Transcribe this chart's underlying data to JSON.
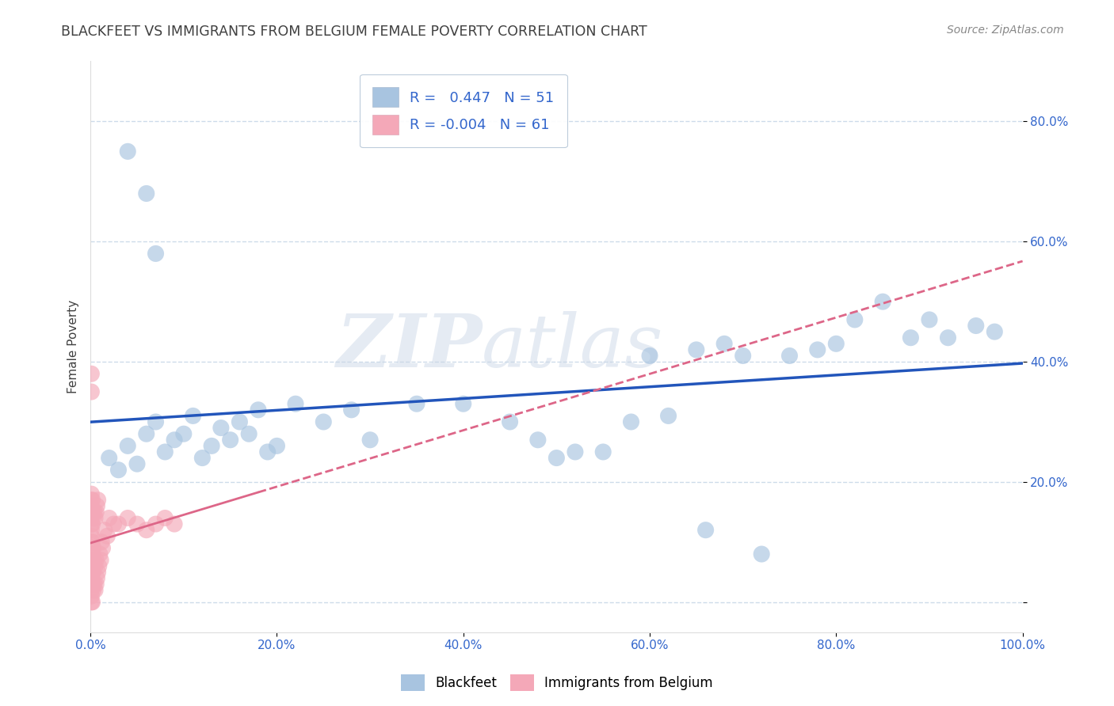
{
  "title": "BLACKFEET VS IMMIGRANTS FROM BELGIUM FEMALE POVERTY CORRELATION CHART",
  "source": "Source: ZipAtlas.com",
  "ylabel": "Female Poverty",
  "xlabel": "",
  "xlim": [
    0.0,
    1.0
  ],
  "ylim": [
    -0.05,
    0.9
  ],
  "xticks": [
    0.0,
    0.2,
    0.4,
    0.6,
    0.8,
    1.0
  ],
  "xtick_labels": [
    "0.0%",
    "20.0%",
    "40.0%",
    "60.0%",
    "80.0%",
    "100.0%"
  ],
  "yticks": [
    0.0,
    0.2,
    0.4,
    0.6,
    0.8
  ],
  "ytick_labels": [
    "",
    "20.0%",
    "40.0%",
    "60.0%",
    "80.0%"
  ],
  "r_blackfeet": 0.447,
  "n_blackfeet": 51,
  "r_belgium": -0.004,
  "n_belgium": 61,
  "dot_color_blue": "#a8c4e0",
  "dot_color_pink": "#f4a8b8",
  "line_color_blue": "#2255bb",
  "line_color_pink": "#dd6688",
  "watermark_zip": "ZIP",
  "watermark_atlas": "atlas",
  "background_color": "#ffffff",
  "grid_color": "#c8d8e8",
  "title_color": "#404040",
  "axis_color": "#3366cc",
  "legend_text_color": "#3366cc",
  "blackfeet_x": [
    0.04,
    0.06,
    0.07,
    0.02,
    0.03,
    0.04,
    0.05,
    0.06,
    0.07,
    0.08,
    0.09,
    0.1,
    0.11,
    0.12,
    0.13,
    0.14,
    0.15,
    0.16,
    0.17,
    0.18,
    0.19,
    0.2,
    0.22,
    0.25,
    0.28,
    0.3,
    0.35,
    0.5,
    0.52,
    0.7,
    0.75,
    0.78,
    0.8,
    0.82,
    0.85,
    0.88,
    0.9,
    0.92,
    0.95,
    0.97,
    0.6,
    0.65,
    0.68,
    0.4,
    0.45,
    0.48,
    0.55,
    0.58,
    0.62,
    0.66,
    0.72
  ],
  "blackfeet_y": [
    0.75,
    0.68,
    0.58,
    0.24,
    0.22,
    0.26,
    0.23,
    0.28,
    0.3,
    0.25,
    0.27,
    0.28,
    0.31,
    0.24,
    0.26,
    0.29,
    0.27,
    0.3,
    0.28,
    0.32,
    0.25,
    0.26,
    0.33,
    0.3,
    0.32,
    0.27,
    0.33,
    0.24,
    0.25,
    0.41,
    0.41,
    0.42,
    0.43,
    0.47,
    0.5,
    0.44,
    0.47,
    0.44,
    0.46,
    0.45,
    0.41,
    0.42,
    0.43,
    0.33,
    0.3,
    0.27,
    0.25,
    0.3,
    0.31,
    0.12,
    0.08
  ],
  "belgium_x": [
    0.001,
    0.001,
    0.001,
    0.001,
    0.001,
    0.001,
    0.001,
    0.001,
    0.001,
    0.001,
    0.001,
    0.001,
    0.001,
    0.001,
    0.001,
    0.001,
    0.001,
    0.001,
    0.001,
    0.001,
    0.002,
    0.002,
    0.002,
    0.002,
    0.002,
    0.002,
    0.002,
    0.002,
    0.003,
    0.003,
    0.003,
    0.003,
    0.004,
    0.004,
    0.004,
    0.005,
    0.005,
    0.005,
    0.006,
    0.006,
    0.006,
    0.007,
    0.007,
    0.008,
    0.008,
    0.009,
    0.01,
    0.011,
    0.012,
    0.013,
    0.015,
    0.018,
    0.02,
    0.025,
    0.03,
    0.04,
    0.05,
    0.06,
    0.07,
    0.08,
    0.09
  ],
  "belgium_y": [
    0.0,
    0.01,
    0.02,
    0.03,
    0.04,
    0.05,
    0.06,
    0.07,
    0.08,
    0.1,
    0.11,
    0.12,
    0.13,
    0.14,
    0.15,
    0.16,
    0.17,
    0.18,
    0.35,
    0.38,
    0.0,
    0.03,
    0.05,
    0.08,
    0.1,
    0.13,
    0.15,
    0.17,
    0.02,
    0.05,
    0.09,
    0.14,
    0.03,
    0.07,
    0.15,
    0.02,
    0.06,
    0.14,
    0.03,
    0.07,
    0.15,
    0.04,
    0.16,
    0.05,
    0.17,
    0.06,
    0.08,
    0.07,
    0.1,
    0.09,
    0.12,
    0.11,
    0.14,
    0.13,
    0.13,
    0.14,
    0.13,
    0.12,
    0.13,
    0.14,
    0.13
  ]
}
